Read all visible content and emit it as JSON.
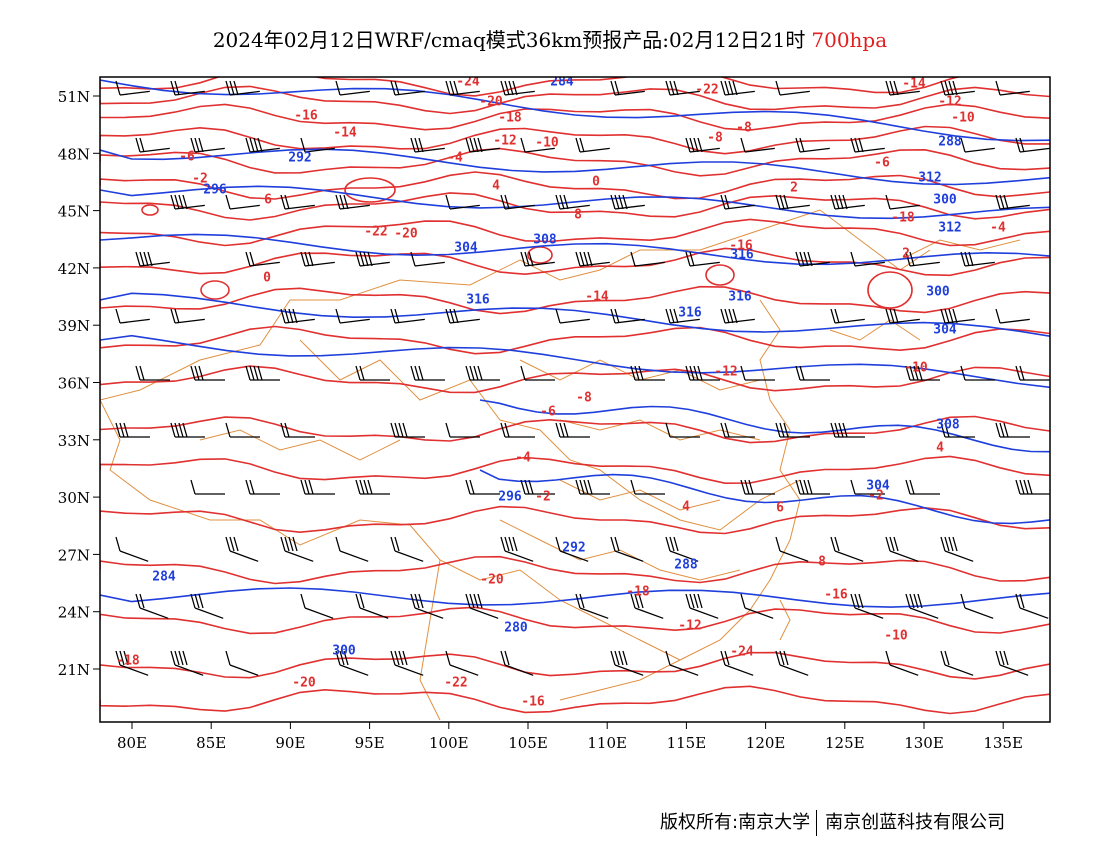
{
  "title": {
    "main": "2024年02月12日WRF/cmaq模式36km预报产品:02月12日21时",
    "level": "700hpa"
  },
  "axes": {
    "lat_labels": [
      "51N",
      "48N",
      "45N",
      "42N",
      "39N",
      "36N",
      "33N",
      "30N",
      "27N",
      "24N",
      "21N"
    ],
    "lon_labels": [
      "80E",
      "85E",
      "90E",
      "95E",
      "100E",
      "105E",
      "110E",
      "115E",
      "120E",
      "125E",
      "130E",
      "135E"
    ],
    "lon_range": [
      78,
      138
    ],
    "lat_range": [
      17.7,
      52
    ]
  },
  "map_data": {
    "height_contour_color": "#1f3fdc",
    "temp_contour_color": "#e03030",
    "border_color": "#e09040",
    "wind_barb_color": "#000000",
    "height_labels": [
      "284",
      "288",
      "292",
      "296",
      "300",
      "304",
      "308",
      "312",
      "316",
      "316",
      "316",
      "316",
      "300",
      "304",
      "296",
      "292",
      "288",
      "284",
      "280",
      "300",
      "304",
      "308",
      "312"
    ],
    "temp_labels": [
      "-24",
      "-22",
      "-20",
      "-18",
      "-16",
      "-14",
      "-12",
      "-10",
      "-8",
      "-6",
      "-4",
      "-2",
      "0",
      "2",
      "4",
      "6",
      "8",
      "-22",
      "-20",
      "-18",
      "-16",
      "-14",
      "-12",
      "-10",
      "-8",
      "-6",
      "-4",
      "-2",
      "4",
      "6",
      "8",
      "-20",
      "-18",
      "-16",
      "-12",
      "-10"
    ]
  },
  "footer": {
    "left": "版权所有:南京大学",
    "right": "南京创蓝科技有限公司"
  }
}
